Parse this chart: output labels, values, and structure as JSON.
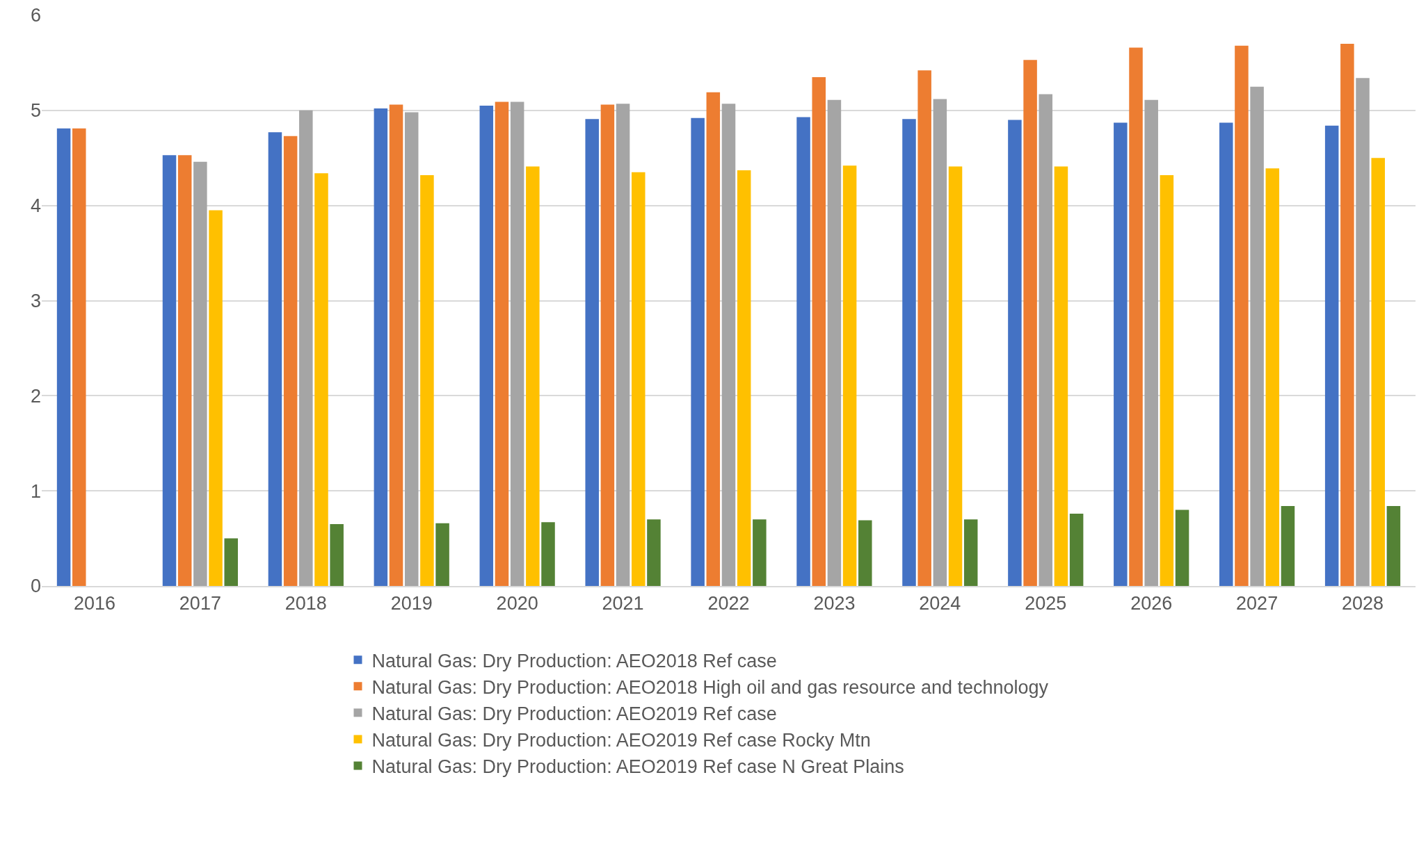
{
  "chart_data": {
    "type": "bar",
    "categories": [
      "2016",
      "2017",
      "2018",
      "2019",
      "2020",
      "2021",
      "2022",
      "2023",
      "2024",
      "2025",
      "2026",
      "2027",
      "2028"
    ],
    "series": [
      {
        "name": "Natural Gas: Dry Production: AEO2018 Ref case",
        "color": "#4472c4",
        "values": [
          4.81,
          4.53,
          4.77,
          5.02,
          5.05,
          4.91,
          4.92,
          4.93,
          4.91,
          4.9,
          4.87,
          4.87,
          4.84
        ]
      },
      {
        "name": "Natural Gas: Dry Production: AEO2018 High oil and gas resource and technology",
        "color": "#ed7d31",
        "values": [
          4.81,
          4.53,
          4.73,
          5.06,
          5.09,
          5.06,
          5.19,
          5.35,
          5.42,
          5.53,
          5.66,
          5.68,
          5.7
        ]
      },
      {
        "name": "Natural Gas: Dry Production: AEO2019 Ref case",
        "color": "#a5a5a5",
        "values": [
          null,
          4.46,
          5.0,
          4.98,
          5.09,
          5.07,
          5.07,
          5.11,
          5.12,
          5.17,
          5.11,
          5.25,
          5.34
        ]
      },
      {
        "name": "Natural Gas: Dry Production: AEO2019 Ref case Rocky Mtn",
        "color": "#ffc000",
        "values": [
          null,
          3.95,
          4.34,
          4.32,
          4.41,
          4.35,
          4.37,
          4.42,
          4.41,
          4.41,
          4.32,
          4.39,
          4.5
        ]
      },
      {
        "name": "Natural Gas: Dry Production: AEO2019 Ref case N Great Plains",
        "color": "#548235",
        "values": [
          null,
          0.5,
          0.65,
          0.66,
          0.67,
          0.7,
          0.7,
          0.69,
          0.7,
          0.76,
          0.8,
          0.84,
          0.84
        ]
      }
    ],
    "ylim": [
      0,
      6
    ],
    "yticks": [
      0,
      1,
      2,
      3,
      4,
      5,
      6
    ],
    "grid": "y",
    "legend": "bottom"
  }
}
